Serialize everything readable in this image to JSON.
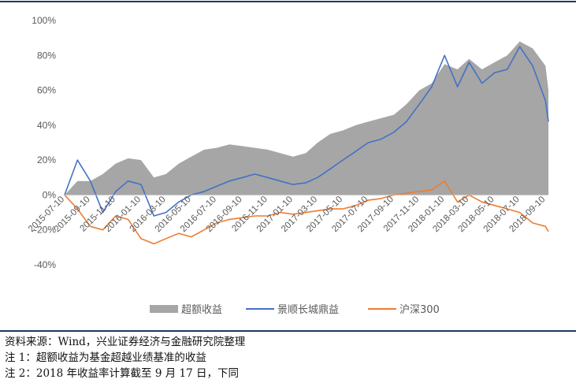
{
  "colors": {
    "excess": "#a6a6a6",
    "fund": "#4472c4",
    "index": "#ed7d31",
    "frame": "#1f3864"
  },
  "notes": {
    "source": "资料来源：Wind，兴业证券经济与金融研究院整理",
    "note1": "注 1：超额收益为基金超越业绩基准的收益",
    "note2": "注 2：2018 年收益率计算截至 9 月 17 日，下同"
  },
  "chart_data": {
    "type": "area",
    "x_tick_labels": [
      "2015-07-10",
      "2015-09-10",
      "2015-11-10",
      "2016-01-10",
      "2016-03-10",
      "2016-05-10",
      "2016-07-10",
      "2016-09-10",
      "2016-11-10",
      "2017-01-10",
      "2017-03-10",
      "2017-05-10",
      "2017-07-10",
      "2017-09-10",
      "2017-11-10",
      "2018-01-10",
      "2018-03-10",
      "2018-05-10",
      "2018-07-10",
      "2018-09-10"
    ],
    "y_tick_labels": [
      "-40%",
      "-20%",
      "0%",
      "20%",
      "40%",
      "60%",
      "80%",
      "100%"
    ],
    "ylim": [
      -40,
      100
    ],
    "grid": false,
    "legend_position": "bottom",
    "x": [
      "2015-07-10",
      "2015-08-10",
      "2015-09-10",
      "2015-10-10",
      "2015-11-10",
      "2015-12-10",
      "2016-01-10",
      "2016-02-10",
      "2016-03-10",
      "2016-04-10",
      "2016-05-10",
      "2016-06-10",
      "2016-07-10",
      "2016-08-10",
      "2016-09-10",
      "2016-10-10",
      "2016-11-10",
      "2016-12-10",
      "2017-01-10",
      "2017-02-10",
      "2017-03-10",
      "2017-04-10",
      "2017-05-10",
      "2017-06-10",
      "2017-07-10",
      "2017-08-10",
      "2017-09-10",
      "2017-10-10",
      "2017-11-10",
      "2017-12-10",
      "2018-01-10",
      "2018-02-10",
      "2018-03-10",
      "2018-04-10",
      "2018-05-10",
      "2018-06-10",
      "2018-07-10",
      "2018-08-10",
      "2018-09-10",
      "2018-09-17"
    ],
    "series": [
      {
        "name": "超额收益",
        "kind": "area",
        "values": [
          0,
          8,
          8,
          12,
          18,
          21,
          20,
          10,
          12,
          18,
          22,
          26,
          27,
          29,
          28,
          27,
          26,
          24,
          22,
          24,
          30,
          35,
          37,
          40,
          42,
          44,
          46,
          52,
          60,
          64,
          75,
          72,
          78,
          72,
          76,
          80,
          88,
          84,
          74,
          60
        ]
      },
      {
        "name": "景顺长城鼎益",
        "kind": "line",
        "values": [
          0,
          20,
          8,
          -10,
          2,
          8,
          6,
          -12,
          -10,
          -4,
          0,
          2,
          5,
          8,
          10,
          12,
          10,
          8,
          6,
          7,
          10,
          15,
          20,
          25,
          30,
          32,
          36,
          42,
          52,
          62,
          80,
          62,
          76,
          64,
          70,
          72,
          85,
          74,
          54,
          42
        ]
      },
      {
        "name": "沪深300",
        "kind": "line",
        "values": [
          0,
          -8,
          -18,
          -20,
          -12,
          -14,
          -25,
          -28,
          -25,
          -22,
          -24,
          -20,
          -16,
          -14,
          -13,
          -12,
          -12,
          -10,
          -11,
          -10,
          -9,
          -8,
          -8,
          -6,
          -3,
          -2,
          0,
          1,
          2,
          3,
          8,
          -4,
          0,
          -4,
          -6,
          -8,
          -10,
          -16,
          -18,
          -21
        ]
      }
    ]
  }
}
